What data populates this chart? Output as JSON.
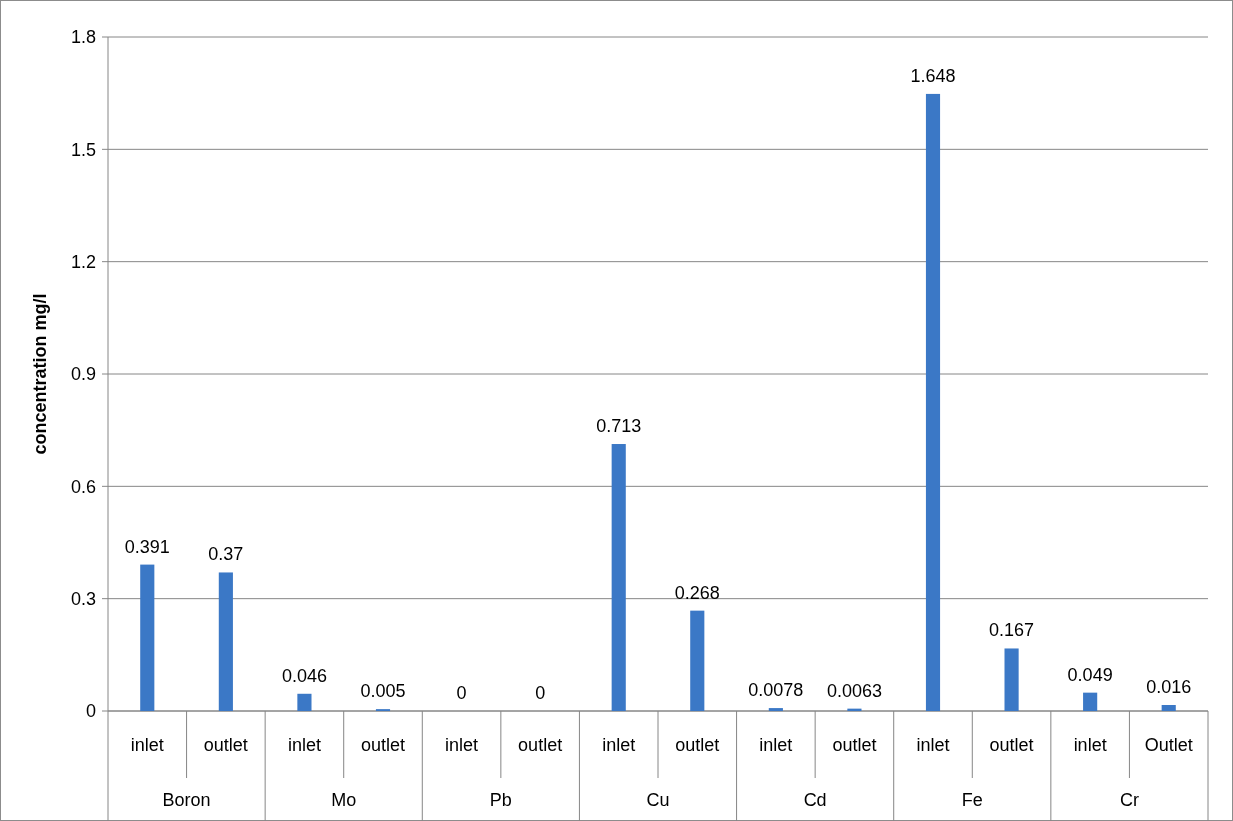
{
  "chart_data": {
    "type": "bar",
    "ylabel": "concentration mg/l",
    "categories": [
      "inlet",
      "outlet",
      "inlet",
      "outlet",
      "inlet",
      "outlet",
      "inlet",
      "outlet",
      "inlet",
      "outlet",
      "inlet",
      "outlet",
      "inlet",
      "Outlet"
    ],
    "values": [
      0.391,
      0.37,
      0.046,
      0.005,
      0,
      0,
      0.713,
      0.268,
      0.0078,
      0.0063,
      1.648,
      0.167,
      0.049,
      0.016
    ],
    "color": "#3b78c6",
    "ylim": [
      0,
      1.8
    ],
    "yticks": [
      {
        "value": 0,
        "label": "0"
      },
      0.3,
      0.6,
      0.9,
      1.2,
      1.5,
      1.8
    ],
    "grid": "y",
    "data_labels": true,
    "annotations": [
      "Boron",
      "Mo",
      "Pb",
      "Cu",
      "Cd",
      "Fe",
      "Cr"
    ]
  }
}
